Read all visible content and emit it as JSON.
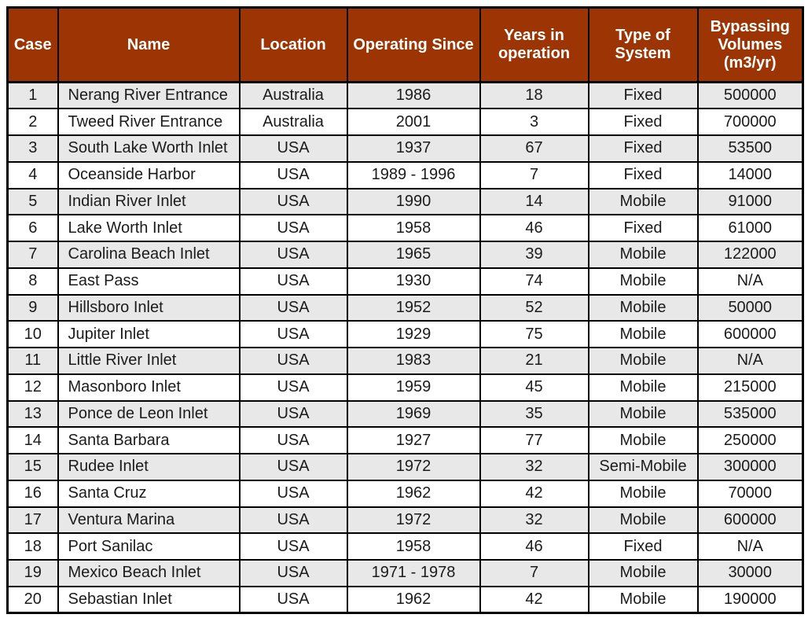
{
  "colors": {
    "header_bg": "#9C3503",
    "header_text": "#FFFFFF",
    "row_bg": "#FFFFFF",
    "row_alt_bg": "#E8E8E8",
    "border": "#000000",
    "body_text": "#1B1B1B"
  },
  "table": {
    "columns": [
      {
        "key": "case",
        "label": "Case"
      },
      {
        "key": "name",
        "label": "Name"
      },
      {
        "key": "location",
        "label": "Location"
      },
      {
        "key": "operating_since",
        "label": "Operating Since"
      },
      {
        "key": "years_in_operation",
        "label": "Years in operation"
      },
      {
        "key": "type_of_system",
        "label": "Type of System"
      },
      {
        "key": "bypassing_volumes",
        "label": "Bypassing Volumes (m3/yr)"
      }
    ],
    "rows": [
      [
        "1",
        "Nerang River Entrance",
        "Australia",
        "1986",
        "18",
        "Fixed",
        "500000"
      ],
      [
        "2",
        "Tweed River Entrance",
        "Australia",
        "2001",
        "3",
        "Fixed",
        "700000"
      ],
      [
        "3",
        "South Lake Worth Inlet",
        "USA",
        "1937",
        "67",
        "Fixed",
        "53500"
      ],
      [
        "4",
        "Oceanside Harbor",
        "USA",
        "1989 - 1996",
        "7",
        "Fixed",
        "14000"
      ],
      [
        "5",
        "Indian River Inlet",
        "USA",
        "1990",
        "14",
        "Mobile",
        "91000"
      ],
      [
        "6",
        "Lake Worth Inlet",
        "USA",
        "1958",
        "46",
        "Fixed",
        "61000"
      ],
      [
        "7",
        "Carolina Beach Inlet",
        "USA",
        "1965",
        "39",
        "Mobile",
        "122000"
      ],
      [
        "8",
        "East Pass",
        "USA",
        "1930",
        "74",
        "Mobile",
        "N/A"
      ],
      [
        "9",
        "Hillsboro Inlet",
        "USA",
        "1952",
        "52",
        "Mobile",
        "50000"
      ],
      [
        "10",
        "Jupiter Inlet",
        "USA",
        "1929",
        "75",
        "Mobile",
        "600000"
      ],
      [
        "11",
        "Little River Inlet",
        "USA",
        "1983",
        "21",
        "Mobile",
        "N/A"
      ],
      [
        "12",
        "Masonboro Inlet",
        "USA",
        "1959",
        "45",
        "Mobile",
        "215000"
      ],
      [
        "13",
        "Ponce de Leon Inlet",
        "USA",
        "1969",
        "35",
        "Mobile",
        "535000"
      ],
      [
        "14",
        "Santa Barbara",
        "USA",
        "1927",
        "77",
        "Mobile",
        "250000"
      ],
      [
        "15",
        "Rudee Inlet",
        "USA",
        "1972",
        "32",
        "Semi-Mobile",
        "300000"
      ],
      [
        "16",
        "Santa Cruz",
        "USA",
        "1962",
        "42",
        "Mobile",
        "70000"
      ],
      [
        "17",
        "Ventura Marina",
        "USA",
        "1972",
        "32",
        "Mobile",
        "600000"
      ],
      [
        "18",
        "Port Sanilac",
        "USA",
        "1958",
        "46",
        "Fixed",
        "N/A"
      ],
      [
        "19",
        "Mexico Beach Inlet",
        "USA",
        "1971 - 1978",
        "7",
        "Mobile",
        "30000"
      ],
      [
        "20",
        "Sebastian Inlet",
        "USA",
        "1962",
        "42",
        "Mobile",
        "190000"
      ]
    ]
  }
}
